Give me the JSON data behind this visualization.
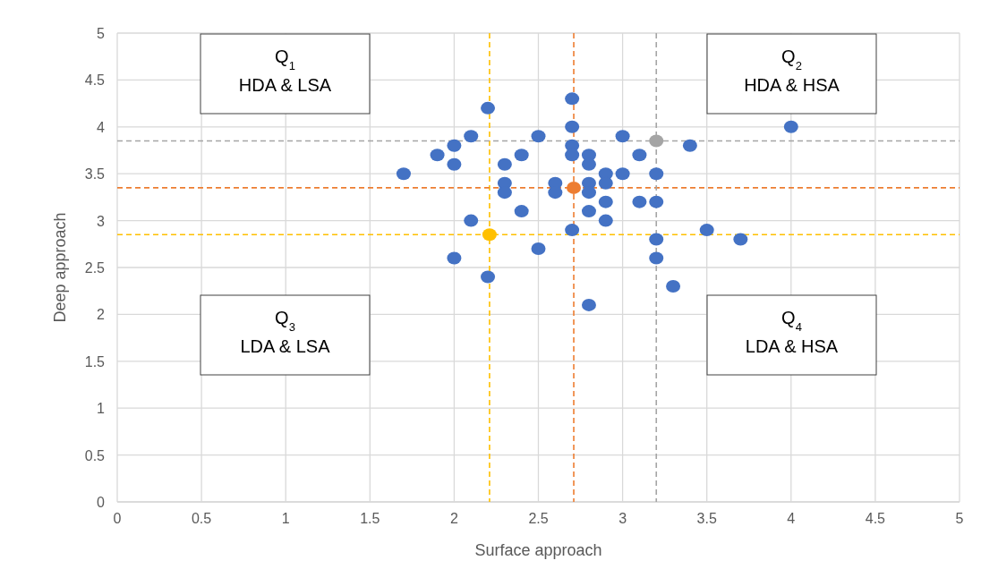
{
  "chart_data": {
    "type": "scatter",
    "xlabel": "Surface approach",
    "ylabel": "Deep approach",
    "xlim": [
      0,
      5
    ],
    "ylim": [
      0,
      5
    ],
    "xticks": [
      0,
      0.5,
      1,
      1.5,
      2,
      2.5,
      3,
      3.5,
      4,
      4.5,
      5
    ],
    "yticks": [
      0,
      0.5,
      1,
      1.5,
      2,
      2.5,
      3,
      3.5,
      4,
      4.5,
      5
    ],
    "grid": true,
    "marker": "circle",
    "series": [
      {
        "color": "#4472c4",
        "x": [
          1.7,
          1.9,
          2.0,
          2.0,
          2.1,
          2.0,
          2.1,
          2.2,
          2.2,
          2.3,
          2.3,
          2.3,
          2.4,
          2.4,
          2.5,
          2.5,
          2.6,
          2.6,
          2.7,
          2.7,
          2.7,
          2.7,
          2.7,
          2.8,
          2.8,
          2.8,
          2.8,
          2.8,
          2.8,
          2.9,
          2.9,
          2.9,
          2.9,
          3.0,
          3.0,
          3.1,
          3.1,
          3.2,
          3.2,
          3.2,
          3.2,
          3.3,
          3.4,
          3.5,
          3.7,
          4.0
        ],
        "values": [
          3.5,
          3.7,
          3.8,
          3.6,
          3.9,
          2.6,
          3.0,
          4.2,
          2.4,
          3.6,
          3.4,
          3.3,
          3.7,
          3.1,
          3.9,
          2.7,
          3.4,
          3.3,
          4.3,
          4.0,
          3.8,
          3.7,
          2.9,
          3.7,
          3.6,
          3.4,
          3.3,
          3.1,
          2.1,
          3.5,
          3.4,
          3.2,
          3.0,
          3.9,
          3.5,
          3.7,
          3.2,
          3.5,
          3.2,
          2.8,
          2.6,
          2.3,
          3.8,
          2.9,
          2.8,
          4.0
        ]
      },
      {
        "color": "#ffc000",
        "x": [
          2.21
        ],
        "values": [
          2.85
        ]
      },
      {
        "color": "#ed7d31",
        "x": [
          2.71
        ],
        "values": [
          3.35
        ]
      },
      {
        "color": "#a5a5a5",
        "x": [
          3.2
        ],
        "values": [
          3.85
        ]
      }
    ],
    "ref_lines": [
      {
        "axis": "x",
        "value": 2.21,
        "color": "#ffc000",
        "line_style": "dashed"
      },
      {
        "axis": "y",
        "value": 2.85,
        "color": "#ffc000",
        "line_style": "dashed"
      },
      {
        "axis": "x",
        "value": 2.71,
        "color": "#ed7d31",
        "line_style": "dashed"
      },
      {
        "axis": "y",
        "value": 3.35,
        "color": "#ed7d31",
        "line_style": "dashed"
      },
      {
        "axis": "x",
        "value": 3.2,
        "color": "#a5a5a5",
        "line_style": "dashed"
      },
      {
        "axis": "y",
        "value": 3.85,
        "color": "#a5a5a5",
        "line_style": "dashed"
      }
    ],
    "annotations": [
      "Q$_{1}$\nHDA & LSA",
      "Q$_{2}$\nHDA & HSA",
      "Q$_{3}$\nLDA & LSA",
      "Q$_{4}$\nLDA & HSA"
    ]
  }
}
